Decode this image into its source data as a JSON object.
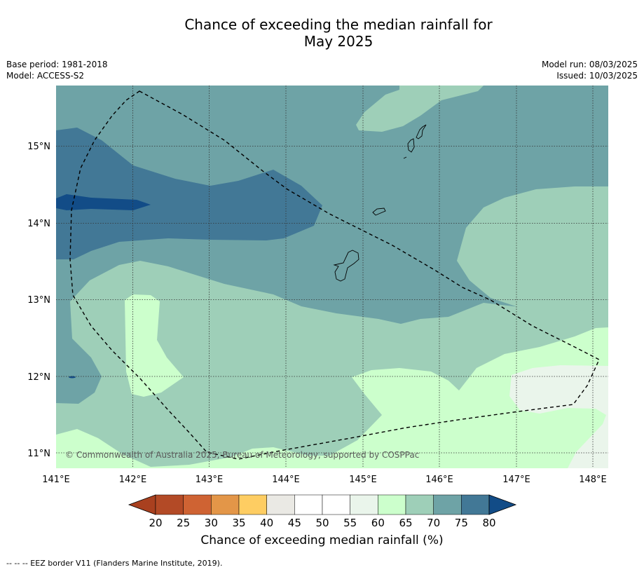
{
  "header": {
    "title_line1": "Chance of exceeding the median rainfall for",
    "title_line2": "May 2025",
    "base_period": "Base period: 1981-2018",
    "model": "Model: ACCESS-S2",
    "model_run": "Model run: 08/03/2025",
    "issued": "Issued: 10/03/2025"
  },
  "map": {
    "lon_ticks": [
      "141°E",
      "142°E",
      "143°E",
      "144°E",
      "145°E",
      "146°E",
      "147°E",
      "148°E"
    ],
    "lat_ticks": [
      "15°N",
      "14°N",
      "13°N",
      "12°N",
      "11°N"
    ],
    "copyright": "© Commonwealth of Australia 2025, Bureau of Meteorology, supported by COSPPac",
    "eez_line": "dashed black polygon"
  },
  "colorbar": {
    "ticks": [
      "20",
      "25",
      "30",
      "35",
      "40",
      "45",
      "50",
      "55",
      "60",
      "65",
      "70",
      "75",
      "80"
    ],
    "colors": [
      "#a9401f",
      "#b34a26",
      "#cf6333",
      "#e39648",
      "#fecd62",
      "#eae9e4",
      "#ffffff",
      "#ffffff",
      "#eaf5eb",
      "#ccffcc",
      "#9ecfb8",
      "#6ea3a6",
      "#427896",
      "#124c87"
    ],
    "label": "Chance of exceeding median rainfall (%)"
  },
  "footnote": "-- -- -- EEZ border V11 (Flanders Marine Institute, 2019)."
}
